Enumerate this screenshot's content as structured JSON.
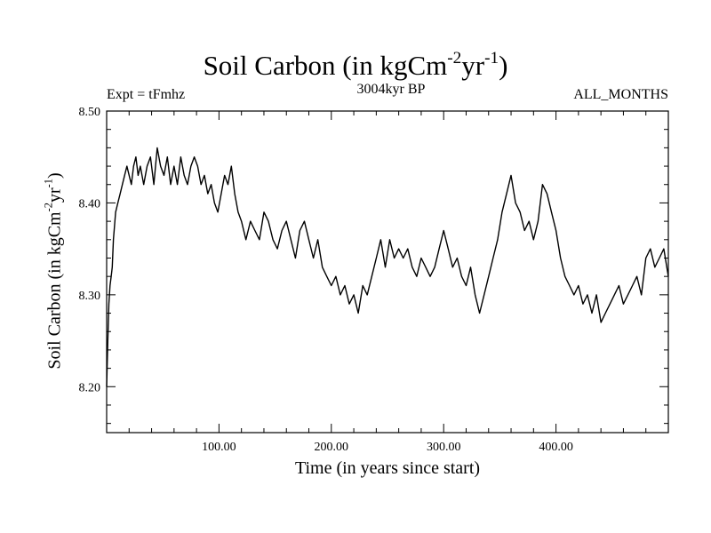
{
  "chart_data": {
    "type": "line",
    "title": "Soil Carbon (in kgCm-2yr-1)",
    "title_parts": [
      "Soil Carbon (in kgCm",
      "-2",
      "yr",
      "-1",
      ")"
    ],
    "experiment_label": "Expt = tFmhz",
    "period_label": "3004kyr BP",
    "months_label": "ALL_MONTHS",
    "xlabel": "Time (in years since start)",
    "ylabel": "Soil Carbon (in kgCm-2yr-1)",
    "ylabel_parts": [
      "Soil Carbon (in kgCm",
      "-2",
      "yr",
      "-1",
      ")"
    ],
    "xlim": [
      0,
      500
    ],
    "ylim": [
      8.15,
      8.5
    ],
    "x_ticks": [
      100,
      200,
      300,
      400
    ],
    "x_tick_labels": [
      "100.00",
      "200.00",
      "300.00",
      "400.00"
    ],
    "y_ticks": [
      8.2,
      8.3,
      8.4,
      8.5
    ],
    "y_tick_labels": [
      "8.20",
      "8.30",
      "8.40",
      "8.50"
    ],
    "grid": false,
    "line_color": "#000000",
    "series": [
      {
        "x": [
          0,
          1,
          2,
          3,
          4,
          5,
          6,
          8,
          10,
          12,
          14,
          16,
          18,
          20,
          22,
          24,
          26,
          28,
          30,
          33,
          36,
          39,
          42,
          45,
          48,
          51,
          54,
          57,
          60,
          63,
          66,
          69,
          72,
          75,
          78,
          81,
          84,
          87,
          90,
          93,
          96,
          99,
          102,
          105,
          108,
          111,
          114,
          117,
          120,
          124,
          128,
          132,
          136,
          140,
          144,
          148,
          152,
          156,
          160,
          164,
          168,
          172,
          176,
          180,
          184,
          188,
          192,
          196,
          200,
          204,
          208,
          212,
          216,
          220,
          224,
          228,
          232,
          236,
          240,
          244,
          248,
          252,
          256,
          260,
          264,
          268,
          272,
          276,
          280,
          284,
          288,
          292,
          296,
          300,
          304,
          308,
          312,
          316,
          320,
          324,
          328,
          332,
          336,
          340,
          344,
          348,
          352,
          356,
          360,
          364,
          368,
          372,
          376,
          380,
          384,
          388,
          392,
          396,
          400,
          404,
          408,
          412,
          416,
          420,
          424,
          428,
          432,
          436,
          440,
          444,
          448,
          452,
          456,
          460,
          464,
          468,
          472,
          476,
          480,
          484,
          488,
          492,
          496,
          500
        ],
        "values": [
          8.2,
          8.25,
          8.29,
          8.31,
          8.32,
          8.33,
          8.36,
          8.39,
          8.4,
          8.41,
          8.42,
          8.43,
          8.44,
          8.43,
          8.42,
          8.44,
          8.45,
          8.43,
          8.44,
          8.42,
          8.44,
          8.45,
          8.42,
          8.46,
          8.44,
          8.43,
          8.45,
          8.42,
          8.44,
          8.42,
          8.45,
          8.43,
          8.42,
          8.44,
          8.45,
          8.44,
          8.42,
          8.43,
          8.41,
          8.42,
          8.4,
          8.39,
          8.41,
          8.43,
          8.42,
          8.44,
          8.41,
          8.39,
          8.38,
          8.36,
          8.38,
          8.37,
          8.36,
          8.39,
          8.38,
          8.36,
          8.35,
          8.37,
          8.38,
          8.36,
          8.34,
          8.37,
          8.38,
          8.36,
          8.34,
          8.36,
          8.33,
          8.32,
          8.31,
          8.32,
          8.3,
          8.31,
          8.29,
          8.3,
          8.28,
          8.31,
          8.3,
          8.32,
          8.34,
          8.36,
          8.33,
          8.36,
          8.34,
          8.35,
          8.34,
          8.35,
          8.33,
          8.32,
          8.34,
          8.33,
          8.32,
          8.33,
          8.35,
          8.37,
          8.35,
          8.33,
          8.34,
          8.32,
          8.31,
          8.33,
          8.3,
          8.28,
          8.3,
          8.32,
          8.34,
          8.36,
          8.39,
          8.41,
          8.43,
          8.4,
          8.39,
          8.37,
          8.38,
          8.36,
          8.38,
          8.42,
          8.41,
          8.39,
          8.37,
          8.34,
          8.32,
          8.31,
          8.3,
          8.31,
          8.29,
          8.3,
          8.28,
          8.3,
          8.27,
          8.28,
          8.29,
          8.3,
          8.31,
          8.29,
          8.3,
          8.31,
          8.32,
          8.3,
          8.34,
          8.35,
          8.33,
          8.34,
          8.35,
          8.32
        ]
      }
    ]
  }
}
